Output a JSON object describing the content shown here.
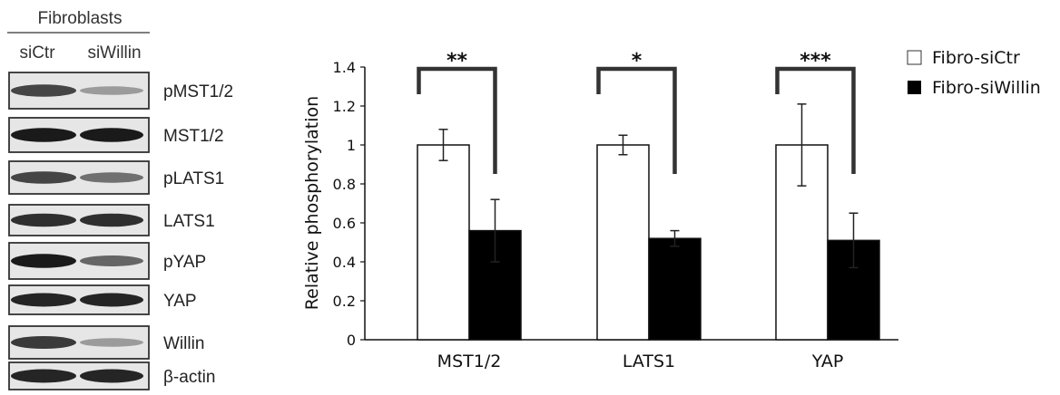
{
  "blot": {
    "header": "Fibroblasts",
    "lanes": [
      "siCtr",
      "siWillin"
    ],
    "rows": [
      {
        "label": "pMST1/2",
        "left_intensity": 0.75,
        "right_intensity": 0.35
      },
      {
        "label": "MST1/2",
        "left_intensity": 0.95,
        "right_intensity": 0.95
      },
      {
        "label": "pLATS1",
        "left_intensity": 0.75,
        "right_intensity": 0.55
      },
      {
        "label": "LATS1",
        "left_intensity": 0.85,
        "right_intensity": 0.85
      },
      {
        "label": "pYAP",
        "left_intensity": 0.95,
        "right_intensity": 0.6
      },
      {
        "label": "YAP",
        "left_intensity": 0.9,
        "right_intensity": 0.9
      },
      {
        "label": "Willin",
        "left_intensity": 0.8,
        "right_intensity": 0.35
      },
      {
        "label": "β-actin",
        "left_intensity": 0.9,
        "right_intensity": 0.9
      }
    ]
  },
  "chart_data": {
    "type": "bar",
    "ylabel": "Relative phosphorylation",
    "xlabel": "",
    "ylim": [
      0,
      1.4
    ],
    "yticks": [
      "0",
      "0.2",
      "0.4",
      "0.6",
      "0.8",
      "1",
      "1.2",
      "1.4"
    ],
    "categories": [
      "MST1/2",
      "LATS1",
      "YAP"
    ],
    "series": [
      {
        "name": "Fibro-siCtr",
        "values": [
          1.0,
          1.0,
          1.0
        ],
        "errors": [
          0.08,
          0.05,
          0.21
        ],
        "color": "#ffffff"
      },
      {
        "name": "Fibro-siWillin",
        "values": [
          0.56,
          0.52,
          0.51
        ],
        "errors": [
          0.16,
          0.04,
          0.14
        ],
        "color": "#000000"
      }
    ],
    "significance": [
      "**",
      "*",
      "***"
    ],
    "legend_position": "top-right"
  }
}
